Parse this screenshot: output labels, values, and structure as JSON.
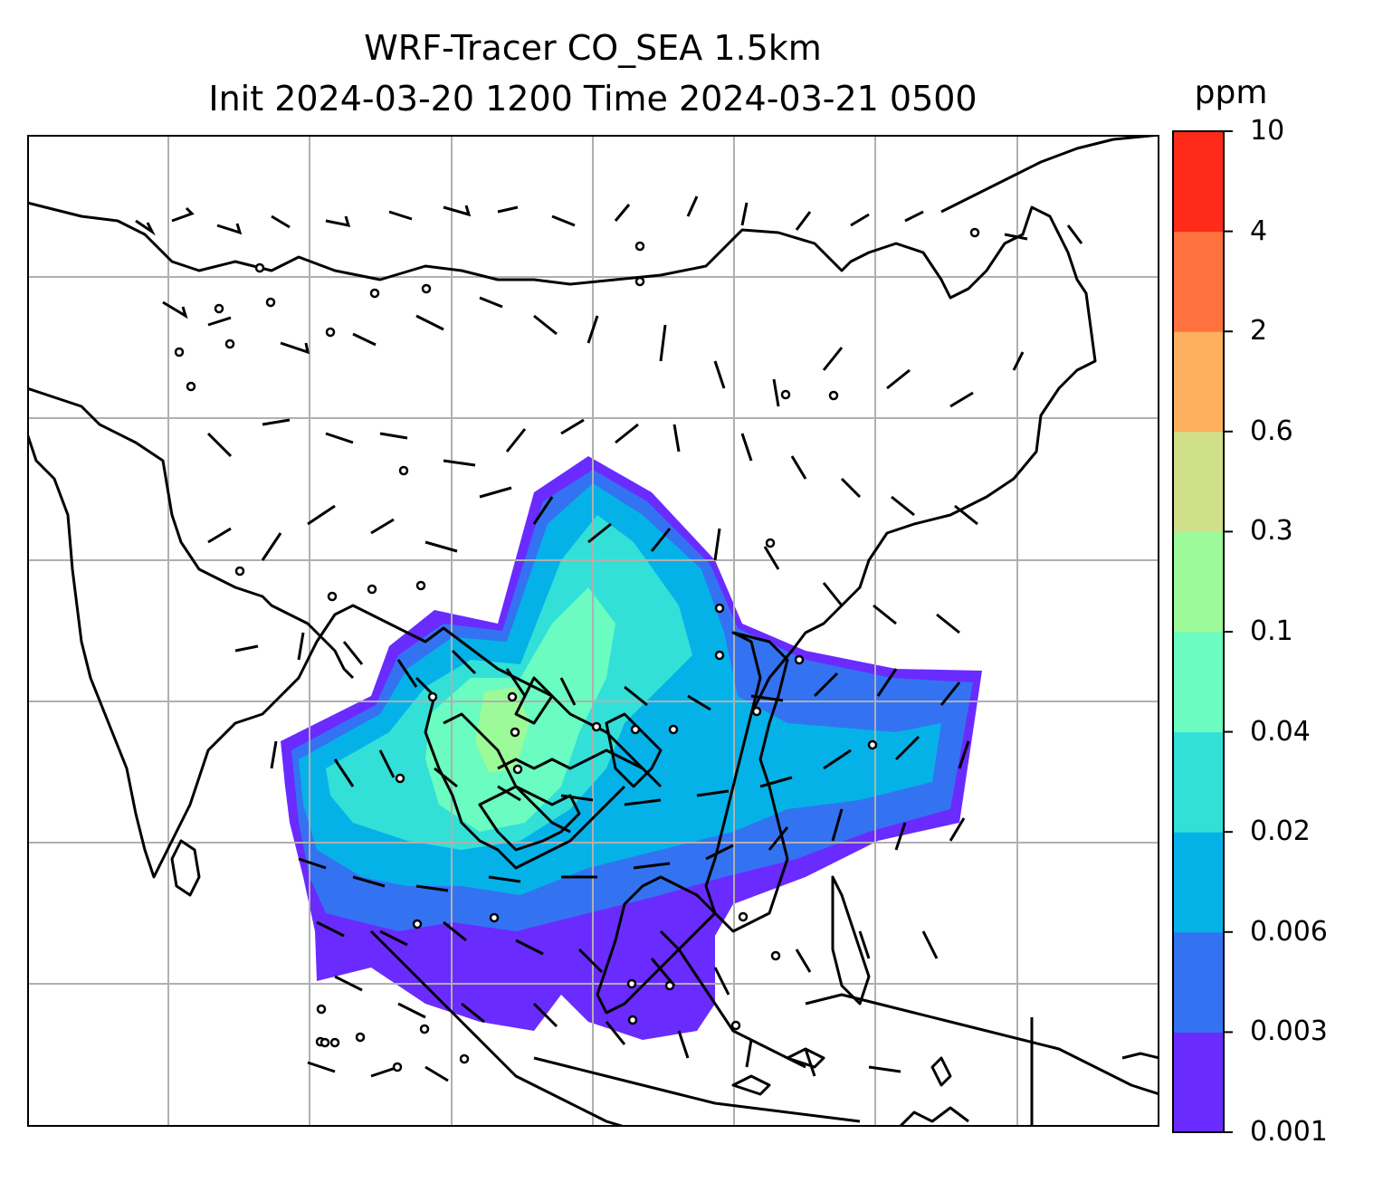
{
  "title_line1": "WRF-Tracer CO_SEA 1.5km",
  "title_line2": "Init 2024-03-20 1200 Time 2024-03-21 0500",
  "colorbar": {
    "unit": "ppm",
    "ticks": [
      "0.001",
      "0.003",
      "0.006",
      "0.02",
      "0.04",
      "0.1",
      "0.3",
      "0.6",
      "2",
      "4",
      "10"
    ],
    "colors": [
      "#6a2bff",
      "#3373f2",
      "#05b2e8",
      "#32e0d8",
      "#6afcc0",
      "#9cfa98",
      "#d0e08a",
      "#fdb05f",
      "#ff7240",
      "#ff2a19"
    ]
  },
  "map": {
    "layers": [
      "coastlines",
      "gridlines",
      "wind-barbs",
      "co-tracer-fill"
    ],
    "gridline_color": "#b0b0b0",
    "coast_color": "#000000"
  }
}
